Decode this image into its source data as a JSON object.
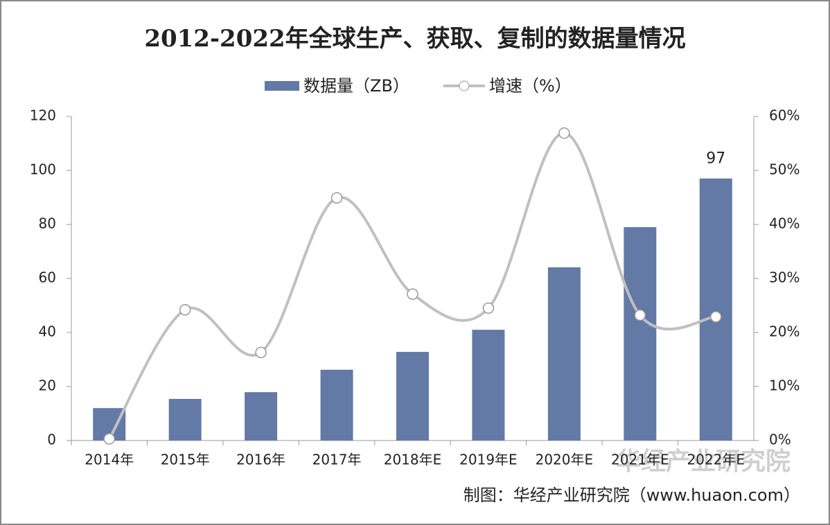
{
  "chart_data": {
    "type": "bar_line",
    "title": "2012-2022年全球生产、获取、复制的数据量情况",
    "categories": [
      "2014年",
      "2015年",
      "2016年",
      "2017年",
      "2018年E",
      "2019年E",
      "2020年E",
      "2021年E",
      "2022年E"
    ],
    "series": [
      {
        "name": "数据量（ZB）",
        "type": "bar",
        "color": "#6379a6",
        "values": [
          12,
          15.4,
          17.9,
          26.2,
          32.8,
          41,
          64.1,
          79,
          97
        ],
        "value_labels": [
          null,
          null,
          null,
          null,
          null,
          null,
          null,
          null,
          "97"
        ]
      },
      {
        "name": "增速（%）",
        "type": "line",
        "axis": "y2",
        "color": "#c0c0c0",
        "values": [
          0.3,
          24.2,
          16.3,
          44.9,
          27.1,
          24.5,
          56.9,
          23.2,
          22.9
        ]
      }
    ],
    "ylim": [
      0,
      120
    ],
    "yticks": [
      0,
      20,
      40,
      60,
      80,
      100,
      120
    ],
    "y2lim": [
      0,
      60
    ],
    "y2ticks": [
      {
        "value": 0,
        "label": "0%"
      },
      {
        "value": 10,
        "label": "10%"
      },
      {
        "value": 20,
        "label": "20%"
      },
      {
        "value": 30,
        "label": "30%"
      },
      {
        "value": 40,
        "label": "40%"
      },
      {
        "value": 50,
        "label": "50%"
      },
      {
        "value": 60,
        "label": "60%"
      }
    ],
    "source": "制图：华经产业研究院（www.huaon.com）",
    "watermark": "华经产业研究院"
  }
}
